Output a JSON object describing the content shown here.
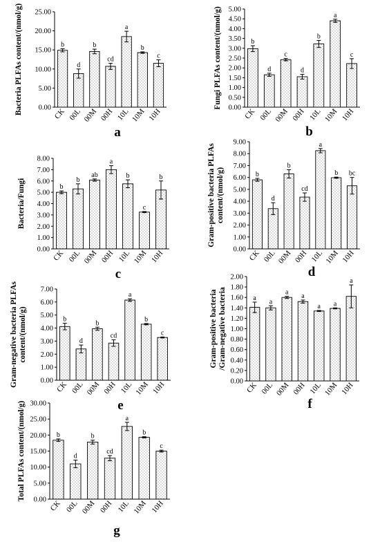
{
  "chart_data": [
    {
      "type": "bar",
      "panel_label": "a",
      "ylabel": "Bacteria PLFAs content/(nmol/g)",
      "categories": [
        "CK",
        "00L",
        "00M",
        "00H",
        "10L",
        "10M",
        "10H"
      ],
      "values": [
        14.9,
        8.8,
        14.6,
        10.7,
        18.5,
        14.3,
        11.5
      ],
      "errors": [
        0.4,
        1.2,
        0.6,
        0.8,
        1.4,
        0.2,
        0.9
      ],
      "letters": [
        "b",
        "d",
        "b",
        "cd",
        "a",
        "b",
        "c"
      ],
      "ylim": [
        0,
        25
      ],
      "yticks": [
        "0.00",
        "5.00",
        "10.00",
        "15.00",
        "20.00",
        "25.00"
      ]
    },
    {
      "type": "bar",
      "panel_label": "b",
      "ylabel": "Fungi PLFAs content/(nmol/g)",
      "categories": [
        "CK",
        "00L",
        "00M",
        "00H",
        "10L",
        "10M",
        "10H"
      ],
      "values": [
        2.98,
        1.65,
        2.42,
        1.55,
        3.22,
        4.4,
        2.22
      ],
      "errors": [
        0.15,
        0.08,
        0.06,
        0.12,
        0.18,
        0.08,
        0.25
      ],
      "letters": [
        "b",
        "d",
        "c",
        "d",
        "b",
        "a",
        "c"
      ],
      "ylim": [
        0,
        5
      ],
      "yticks": [
        "0.00",
        "0.50",
        "1.00",
        "1.50",
        "2.00",
        "2.50",
        "3.00",
        "3.50",
        "4.00",
        "4.50",
        "5.00"
      ]
    },
    {
      "type": "bar",
      "panel_label": "c",
      "ylabel": "Bacteria/Fungi",
      "categories": [
        "CK",
        "00L",
        "00M",
        "00H",
        "10L",
        "10M",
        "10H"
      ],
      "values": [
        5.0,
        5.3,
        6.08,
        7.0,
        5.75,
        3.25,
        5.2
      ],
      "errors": [
        0.12,
        0.45,
        0.1,
        0.35,
        0.35,
        0.05,
        0.8
      ],
      "letters": [
        "b",
        "b",
        "ab",
        "a",
        "b",
        "c",
        "b"
      ],
      "ylim": [
        0,
        8
      ],
      "yticks": [
        "0.00",
        "1.00",
        "2.00",
        "3.00",
        "4.00",
        "5.00",
        "6.00",
        "7.00",
        "8.00"
      ]
    },
    {
      "type": "bar",
      "panel_label": "d",
      "ylabel": "Gram-positive bacteria PLFAs content/(nmol/g)",
      "ylabel_lines": [
        "Gram-positive bacteria PLFAs",
        "content/(nmol/g)"
      ],
      "categories": [
        "CK",
        "00L",
        "00M",
        "00H",
        "10L",
        "10M",
        "10H"
      ],
      "values": [
        5.8,
        3.38,
        6.3,
        4.35,
        8.25,
        5.98,
        5.3
      ],
      "errors": [
        0.12,
        0.5,
        0.35,
        0.35,
        0.18,
        0.05,
        0.7
      ],
      "letters": [
        "b",
        "d",
        "b",
        "cd",
        "a",
        "b",
        "bc"
      ],
      "ylim": [
        0,
        9
      ],
      "yticks": [
        "0.00",
        "1.00",
        "2.00",
        "3.00",
        "4.00",
        "5.00",
        "6.00",
        "7.00",
        "8.00",
        "9.00"
      ]
    },
    {
      "type": "bar",
      "panel_label": "e",
      "ylabel": "Gram-negative bacteria PLFAs content/(nmol/g)",
      "ylabel_lines": [
        "Gram-negative bacteria PLFAs",
        "content/(nmol/g)"
      ],
      "categories": [
        "CK",
        "00L",
        "00M",
        "00H",
        "10L",
        "10M",
        "10H"
      ],
      "values": [
        4.12,
        2.4,
        3.95,
        2.85,
        6.15,
        4.3,
        3.28
      ],
      "errors": [
        0.25,
        0.3,
        0.12,
        0.25,
        0.1,
        0.05,
        0.04
      ],
      "letters": [
        "b",
        "d",
        "b",
        "cd",
        "a",
        "b",
        "c"
      ],
      "ylim": [
        0,
        7
      ],
      "yticks": [
        "0.00",
        "1.00",
        "2.00",
        "3.00",
        "4.00",
        "5.00",
        "6.00",
        "7.00"
      ]
    },
    {
      "type": "bar",
      "panel_label": "f",
      "ylabel": "Gram-positive bacteria /Gram-negative bacteria",
      "ylabel_lines": [
        "Gram-positive bacteria",
        "/Gram-negative bacteria"
      ],
      "categories": [
        "CK",
        "00L",
        "00M",
        "00H",
        "10L",
        "10M",
        "10H"
      ],
      "values": [
        1.41,
        1.4,
        1.6,
        1.52,
        1.34,
        1.39,
        1.62
      ],
      "errors": [
        0.1,
        0.04,
        0.02,
        0.03,
        0.01,
        0.01,
        0.22
      ],
      "letters": [
        "a",
        "a",
        "a",
        "a",
        "a",
        "a",
        "a"
      ],
      "ylim": [
        0,
        2
      ],
      "yticks": [
        "0.00",
        "0.20",
        "0.40",
        "0.60",
        "0.80",
        "1.00",
        "1.20",
        "1.40",
        "1.60",
        "1.80",
        "2.00"
      ]
    },
    {
      "type": "bar",
      "panel_label": "g",
      "ylabel": "Total PLFAs content/(nmol/g)",
      "categories": [
        "CK",
        "00L",
        "00M",
        "00H",
        "10L",
        "10M",
        "10H"
      ],
      "values": [
        18.4,
        11.0,
        17.8,
        12.8,
        22.7,
        19.3,
        15.0
      ],
      "errors": [
        0.4,
        1.2,
        0.6,
        0.8,
        1.3,
        0.2,
        0.3
      ],
      "letters": [
        "b",
        "d",
        "b",
        "cd",
        "a",
        "b",
        "c"
      ],
      "ylim": [
        0,
        30
      ],
      "yticks": [
        "0.00",
        "5.00",
        "10.00",
        "15.00",
        "20.00",
        "25.00",
        "30.00"
      ]
    }
  ]
}
